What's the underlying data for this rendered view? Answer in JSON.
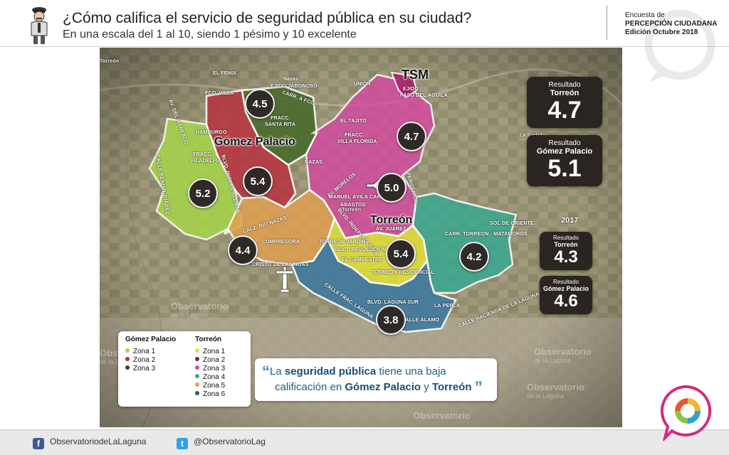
{
  "header": {
    "title": "¿Cómo califica el servicio de seguridad pública en su ciudad?",
    "subtitle": "En una escala del 1 al 10, siendo 1 pésimo y 10 excelente",
    "survey_line1": "Encuesta de",
    "survey_line2": "PERCEPCIÓN CIUDADANA",
    "survey_line3": "Edición Octubre 2018"
  },
  "map": {
    "cities": {
      "gomez": "Gómez Palacio",
      "torreon": "Torreón",
      "tsm": "TSM"
    },
    "place_labels": [
      "EL FÉNIX",
      "Nazas",
      "EJIDO JABONOSO",
      "FCO. VILLA",
      "CARR. A FCO.",
      "FRACC.",
      "SANTA RITA",
      "HAMBURGO",
      "FRACC.",
      "FILADELFIA",
      "CALLE BENITO JUÁREZ",
      "BLVD. MIGUEL ALEMÁN",
      "AV. DEL MANEADO",
      "CALZ. RÍO NAZAS",
      "UNIÓN",
      "EJIDO",
      "PASO DEL ÁGUILA",
      "EL TAJITO",
      "FRACC.",
      "VILLA FLORIDA",
      "NAZAS",
      "AV. MORELOS",
      "MANUEL ÁVILA CAMACHO",
      "ABASTOS",
      "BLVD. INDEPENDENCIA",
      "AV. JUÁREZ",
      "PERIFÉRICO",
      "SOL DE ORIENTE",
      "CARR. TORREÓN - MATAMOROS",
      "COMPRESORA",
      "CRISTO DE LAS NOAS",
      "TORREÓN JARDÍN",
      "BLVD. REVOLUCIÓN",
      "EL CAMPESTRE",
      "TORREÓN RESIDENCIAL",
      "CALLE FRAC. LAGUNA",
      "BLVD. LAGUNA SUR",
      "CALLE ÁLAMO",
      "LA PERLA",
      "CALLE HACIENDA DE LA LAGUNA",
      "Torreón",
      "Torreón",
      "La Partida"
    ],
    "scores": [
      "4.5",
      "5.4",
      "5.2",
      "4.7",
      "5.0",
      "4.4",
      "5.4",
      "4.2",
      "3.8"
    ],
    "zone_colors": {
      "gp1": "#a6d64a",
      "gp2": "#b8333f",
      "gp3": "#4b6b2c",
      "t1": "#e2e23a",
      "t2": "#a8226b",
      "t3": "#d44aa0",
      "t4": "#3aa890",
      "t5": "#e0a050",
      "t6": "#3e7aa0"
    }
  },
  "results": {
    "label": "Resultado",
    "torreon_name": "Torreón",
    "torreon_value": "4.7",
    "gomez_name": "Gómez Palacio",
    "gomez_value": "5.1",
    "year": "2017",
    "torreon_2017": "4.3",
    "gomez_2017": "4.6"
  },
  "legend": {
    "gomez_header": "Gómez Palacio",
    "torreon_header": "Torreón",
    "gomez_zones": [
      {
        "label": "Zona 1",
        "color": "#a6d64a"
      },
      {
        "label": "Zona 2",
        "color": "#b8333f"
      },
      {
        "label": "Zona 3",
        "color": "#2d4a22"
      }
    ],
    "torreon_zones": [
      {
        "label": "Zona 1",
        "color": "#e2e23a"
      },
      {
        "label": "Zona 2",
        "color": "#8a1d48"
      },
      {
        "label": "Zona 3",
        "color": "#d44aa0"
      },
      {
        "label": "Zona 4",
        "color": "#3aa890"
      },
      {
        "label": "Zona 5",
        "color": "#e0a050"
      },
      {
        "label": "Zona 6",
        "color": "#2e5a78"
      }
    ]
  },
  "callout": {
    "p1": "La",
    "p2": "seguridad pública",
    "p3": "tiene una baja",
    "p4": "calificación en",
    "p5": "Gómez Palacio",
    "p6": "y",
    "p7": "Torreón",
    "open_quote": "“",
    "close_quote": "”"
  },
  "watermark": {
    "name": "Observatorio",
    "sub": "de la Laguna"
  },
  "footer": {
    "facebook": "ObservatoriodeLaLaguna",
    "twitter": "@ObservatorioLag"
  }
}
